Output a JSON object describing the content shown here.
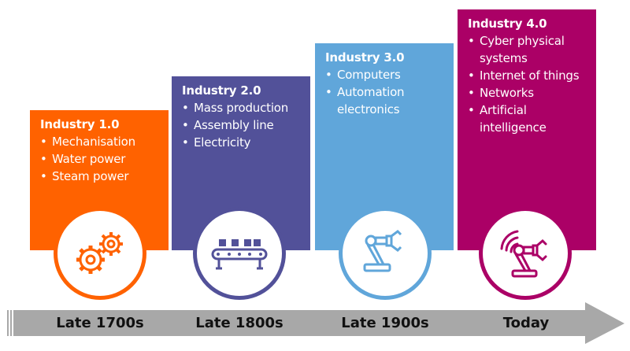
{
  "stages": [
    {
      "title": "Industry 1.0",
      "bullets": [
        "Mechanisation",
        "Water power",
        "Steam power"
      ],
      "era": "Late 1700s",
      "color": "#FF6200",
      "icon": "gears-icon"
    },
    {
      "title": "Industry 2.0",
      "bullets": [
        "Mass production",
        "Assembly line",
        "Electricity"
      ],
      "era": "Late 1800s",
      "color": "#525199",
      "icon": "conveyor-belt-icon"
    },
    {
      "title": "Industry 3.0",
      "bullets": [
        "Computers",
        "Automation electronics"
      ],
      "era": "Late 1900s",
      "color": "#60A6DA",
      "icon": "robot-arm-icon"
    },
    {
      "title": "Industry 4.0",
      "bullets": [
        "Cyber physical systems",
        "Internet of things",
        "Networks",
        "Artificial intelligence"
      ],
      "era": "Today",
      "color": "#AB0066",
      "icon": "connected-robot-arm-icon"
    }
  ],
  "timeline": {
    "color": "#A8A8A8",
    "icon": "arrow-right-icon"
  }
}
